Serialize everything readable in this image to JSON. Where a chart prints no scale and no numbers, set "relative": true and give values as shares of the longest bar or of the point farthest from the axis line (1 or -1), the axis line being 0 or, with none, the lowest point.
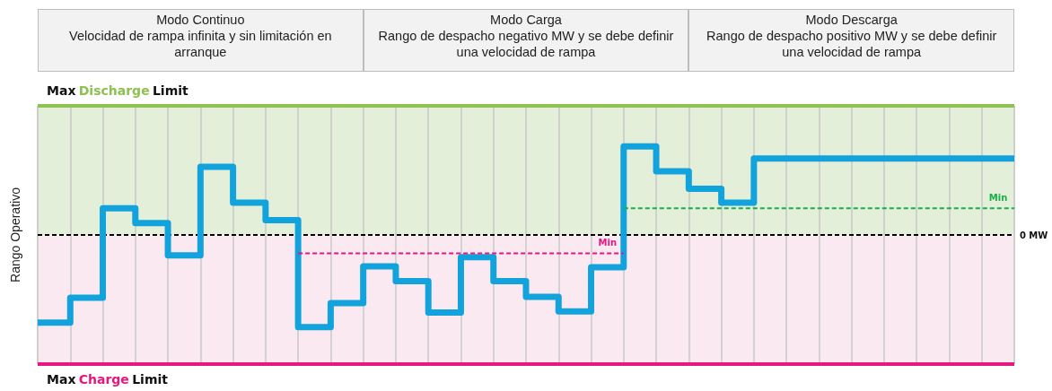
{
  "chart_data": {
    "type": "step",
    "relative": true,
    "ylabel": "Rango Operativo",
    "annotations": [
      "Modo Continuo\nVelocidad de rampa infinita y sin limitación en arranque",
      "Modo Carga\nRango de despacho negativo MW y se debe definir una velocidad de rampa",
      "Modo Descarga\nRango de despacho positivo MW y se debe definir una velocidad de rampa"
    ],
    "categories": [
      null,
      null,
      null,
      null,
      null,
      null,
      null,
      null,
      null,
      null,
      null,
      null,
      null,
      null,
      null,
      null,
      null,
      null,
      null,
      null,
      null,
      null,
      null,
      null,
      null,
      null,
      null,
      null,
      null,
      null,
      null
    ],
    "grid": "x",
    "series": [
      {
        "color": "#12a3dd",
        "values": [
          -0.95,
          -0.68,
          0.29,
          0.13,
          -0.22,
          0.74,
          0.35,
          0.16,
          -1.0,
          -0.74,
          -0.34,
          -0.5,
          -0.84,
          -0.24,
          -0.5,
          -0.67,
          -0.83,
          -0.35,
          0.96,
          0.69,
          0.5,
          0.35,
          0.83,
          0.83,
          0.83,
          0.83,
          0.83,
          0.83,
          0.83,
          0.83,
          0.83
        ]
      },
      {
        "type": "line",
        "name": "Min",
        "color": "#e8177d",
        "line_style": "dashed",
        "values": [
          null,
          null,
          null,
          null,
          null,
          null,
          null,
          null,
          -0.2,
          -0.2,
          -0.2,
          -0.2,
          -0.2,
          -0.2,
          -0.2,
          -0.2,
          -0.2,
          -0.2,
          -0.2,
          null,
          null,
          null,
          null,
          null,
          null,
          null,
          null,
          null,
          null,
          null,
          null
        ]
      },
      {
        "type": "line",
        "name": "Min",
        "color": "#1aae4a",
        "line_style": "dashed",
        "values": [
          null,
          null,
          null,
          null,
          null,
          null,
          null,
          null,
          null,
          null,
          null,
          null,
          null,
          null,
          null,
          null,
          null,
          null,
          0.29,
          0.29,
          0.29,
          0.29,
          0.29,
          0.29,
          0.29,
          0.29,
          0.29,
          0.29,
          0.29,
          0.29,
          0.29
        ]
      }
    ],
    "ref_lines": [
      {
        "axis": "y",
        "value": 1.4,
        "label": "Max Discharge Limit",
        "color": "#8dc152"
      },
      {
        "axis": "y",
        "value": -1.4,
        "label": "Max Charge Limit",
        "color": "#e8177d"
      },
      {
        "axis": "y",
        "value": 0,
        "label": "0 MW",
        "color": "#000000",
        "line_style": "dashed"
      }
    ],
    "bands": [
      {
        "axis": "y",
        "from": 0,
        "to": 1.4,
        "color": "#e3efd8"
      },
      {
        "axis": "y",
        "from": -1.4,
        "to": 0,
        "color": "#fbe9f1"
      }
    ]
  }
}
